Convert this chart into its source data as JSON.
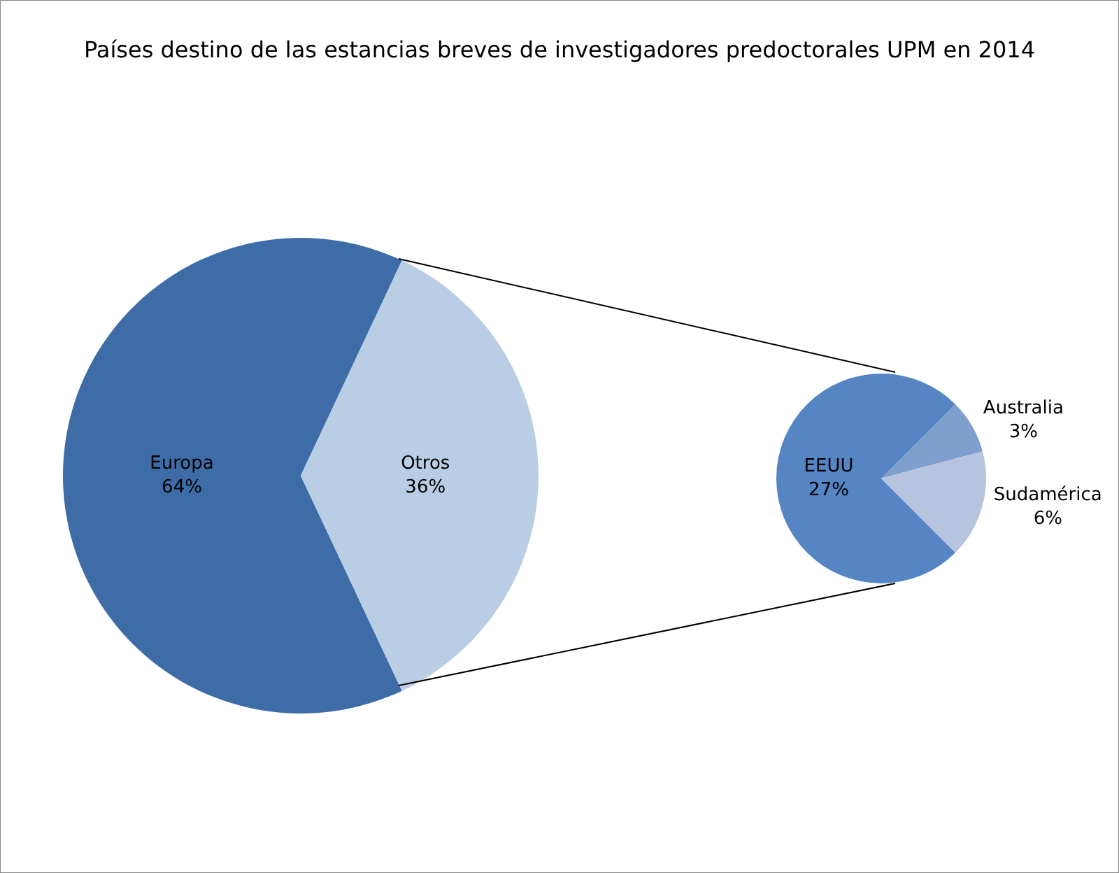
{
  "chart_data": [
    {
      "type": "pie",
      "title": "Países destino de las estancias breves de investigadores predoctorales UPM en 2014",
      "categories": [
        "Europa",
        "Otros"
      ],
      "values": [
        64,
        36
      ],
      "colors": [
        "#3e6ca6",
        "#b9cde5"
      ],
      "value_labels": [
        "64%",
        "36%"
      ],
      "legend": false
    },
    {
      "type": "pie",
      "categories": [
        "EEUU",
        "Australia",
        "Sudamérica"
      ],
      "values": [
        27,
        3,
        6
      ],
      "colors": [
        "#5585c3",
        "#7f9fcf",
        "#b7c4e0"
      ],
      "value_labels": [
        "27%",
        "3%",
        "6%"
      ],
      "legend": false
    }
  ]
}
